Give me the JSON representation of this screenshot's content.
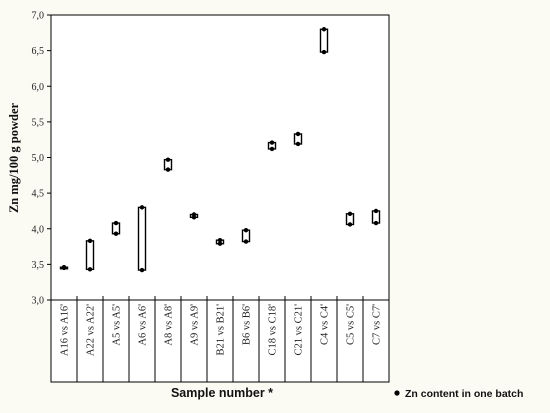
{
  "chart_data": {
    "type": "range",
    "xlabel": "Sample number *",
    "ylabel": "Zn mg/100 g powder",
    "ylim": [
      3.0,
      7.0
    ],
    "yticks": [
      "3,0",
      "3,5",
      "4,0",
      "4,5",
      "5,0",
      "5,5",
      "6,0",
      "6,5",
      "7,0"
    ],
    "grid": false,
    "legend_position": "bottom-right",
    "categories": [
      "A16 vs A16'",
      "A22 vs A22'",
      "A5 vs A5'",
      "A6 vs A6'",
      "A8 vs A8'",
      "A9 vs A9'",
      "B21 vs B21'",
      "B6 vs B6'",
      "C18 vs C18'",
      "C21 vs C21'",
      "C4 vs C4'",
      "C5 vs C5'",
      "C7 vs C7'"
    ],
    "series": [
      {
        "name": "Zn content in one batch",
        "values": [
          [
            3.45,
            3.46
          ],
          [
            3.43,
            3.83
          ],
          [
            3.93,
            4.08
          ],
          [
            3.42,
            4.3
          ],
          [
            4.83,
            4.97
          ],
          [
            4.16,
            4.2
          ],
          [
            3.79,
            3.84
          ],
          [
            3.82,
            3.98
          ],
          [
            5.12,
            5.21
          ],
          [
            5.19,
            5.33
          ],
          [
            6.48,
            6.8
          ],
          [
            4.06,
            4.21
          ],
          [
            4.08,
            4.25
          ]
        ]
      }
    ]
  }
}
